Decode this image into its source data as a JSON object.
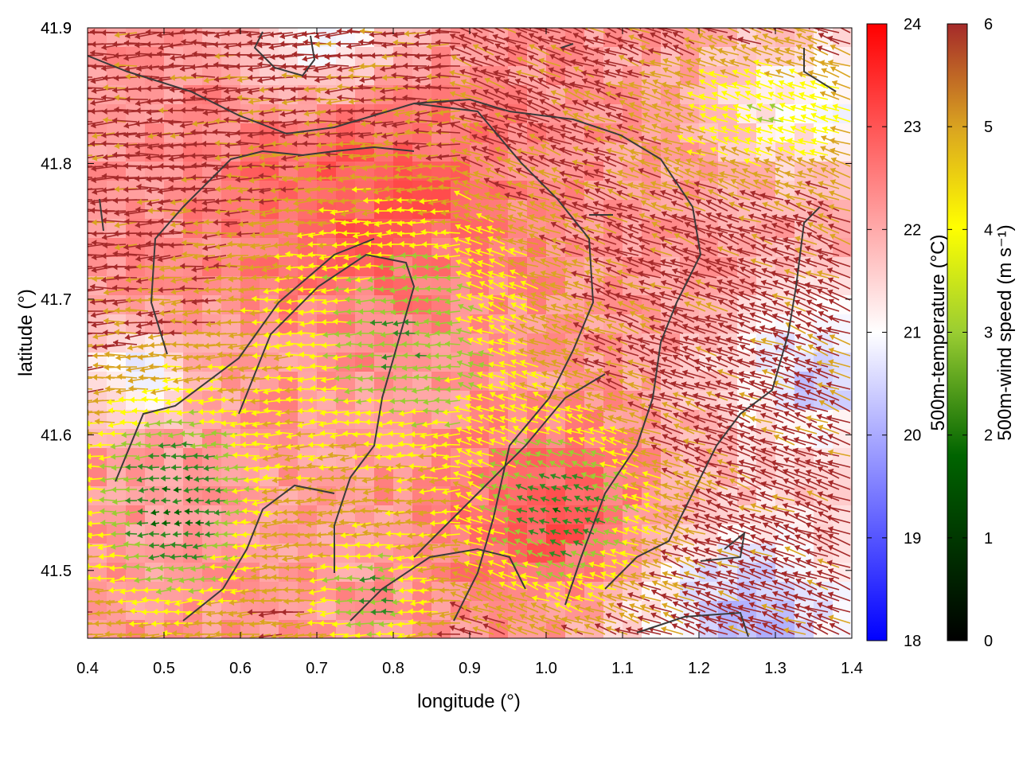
{
  "chart_data": {
    "type": "heatmap",
    "xlabel": "longitude (°)",
    "ylabel": "latitude (°)",
    "xlim": [
      0.4,
      1.4
    ],
    "ylim": [
      41.45,
      41.9
    ],
    "x_ticks": [
      "0.4",
      "0.5",
      "0.6",
      "0.7",
      "0.8",
      "0.9",
      "1.0",
      "1.1",
      "1.2",
      "1.3",
      "1.4"
    ],
    "y_ticks": [
      "41.5",
      "41.6",
      "41.7",
      "41.8",
      "41.9"
    ],
    "grid": false,
    "layers": {
      "field": {
        "name": "500m-temperature (°C)",
        "range": [
          18,
          24
        ],
        "ticks": [
          "18",
          "19",
          "20",
          "21",
          "22",
          "23",
          "24"
        ],
        "colors": [
          "#0000ff",
          "#ffffff",
          "#ff0000"
        ]
      },
      "vectors": {
        "name": "500m-wind speed (m s⁻¹)",
        "range": [
          0,
          6
        ],
        "ticks": [
          "0",
          "1",
          "2",
          "3",
          "4",
          "5",
          "6"
        ],
        "colors": [
          "#000000",
          "#006400",
          "#9acd32",
          "#ffff00",
          "#daa520",
          "#a52a2a"
        ],
        "dominant_direction": "westward (east to west)"
      }
    },
    "contour_color": "#3a3a3a"
  }
}
